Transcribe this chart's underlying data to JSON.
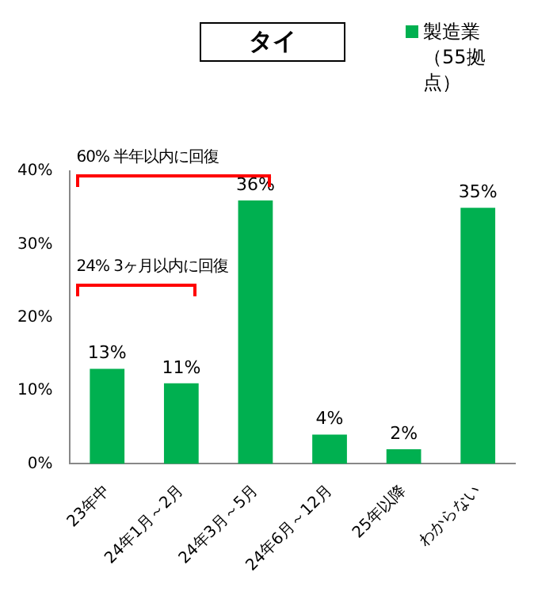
{
  "chart_data": {
    "type": "bar",
    "title": "タイ",
    "categories": [
      "23年中",
      "24年1月～2月",
      "24年3月～5月",
      "24年6月～12月",
      "25年以降",
      "わからない"
    ],
    "series": [
      {
        "name": "製造業（55拠点）",
        "color": "#00b050",
        "values": [
          13,
          11,
          36,
          4,
          2,
          35
        ],
        "value_labels": [
          "13%",
          "11%",
          "36%",
          "4%",
          "2%",
          "35%"
        ]
      }
    ],
    "ylim": [
      0,
      40
    ],
    "yticks": [
      {
        "value": 0,
        "label": "0%"
      },
      {
        "value": 10,
        "label": "10%"
      },
      {
        "value": 20,
        "label": "20%"
      },
      {
        "value": 30,
        "label": "30%"
      },
      {
        "value": 40,
        "label": "40%"
      }
    ],
    "grid": false,
    "legend": "top right",
    "annotations": [
      "60%  半年以内に回復",
      "24%  3ヶ月以内に回復"
    ]
  }
}
